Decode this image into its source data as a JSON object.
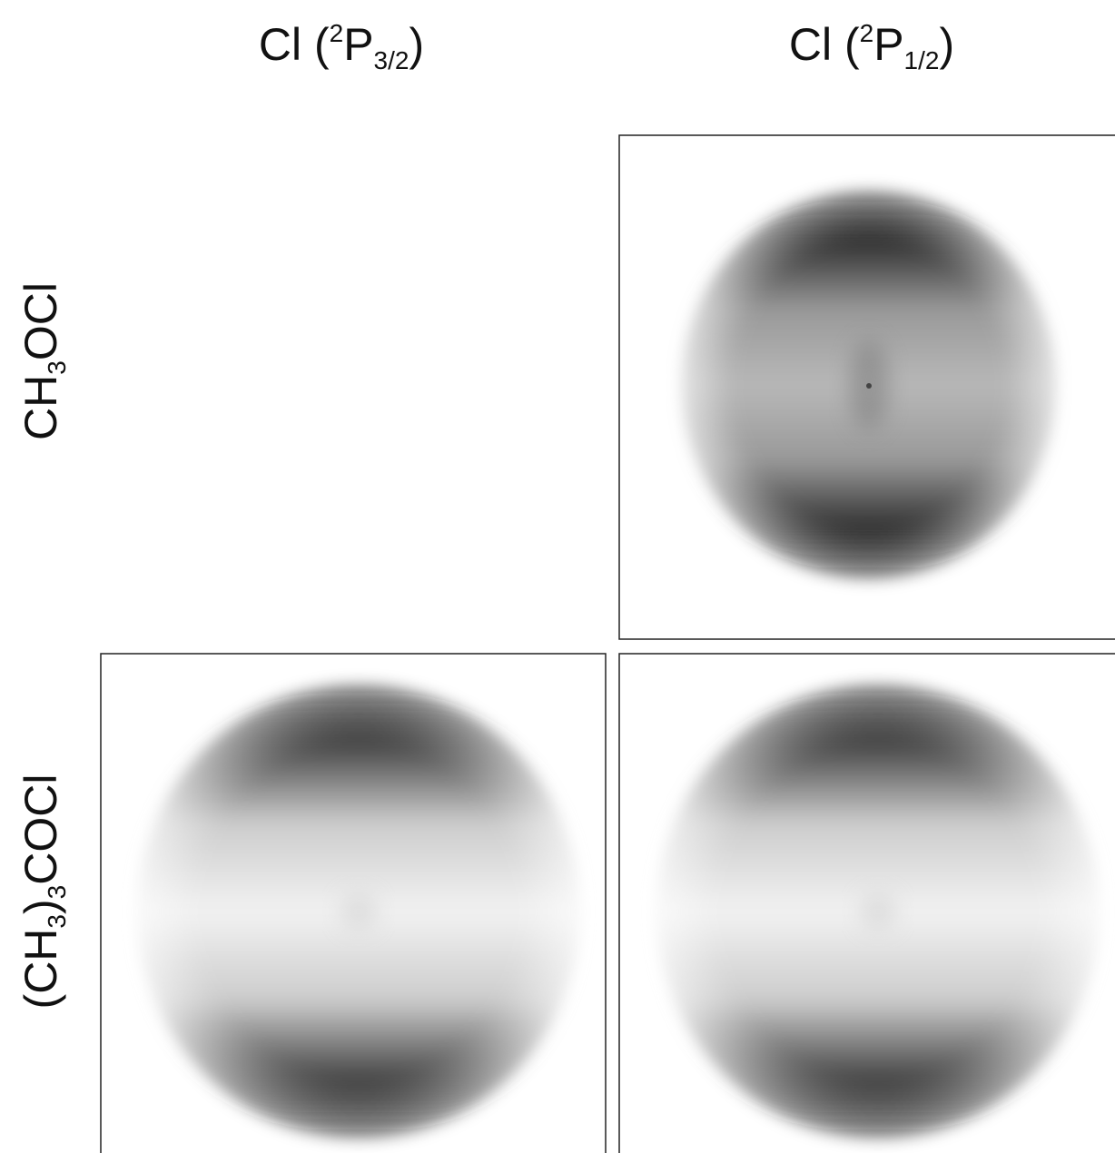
{
  "columns": [
    {
      "prefix": "Cl (",
      "sup": "2",
      "symbol": "P",
      "sub": "3/2",
      "suffix": ")"
    },
    {
      "prefix": "Cl (",
      "sup": "2",
      "symbol": "P",
      "sub": "1/2",
      "suffix": ")"
    }
  ],
  "rows": [
    {
      "parts": [
        "CH",
        "3",
        "OCl"
      ]
    },
    {
      "parts": [
        "(CH",
        "3",
        ")",
        "3",
        "COCl"
      ]
    }
  ]
}
